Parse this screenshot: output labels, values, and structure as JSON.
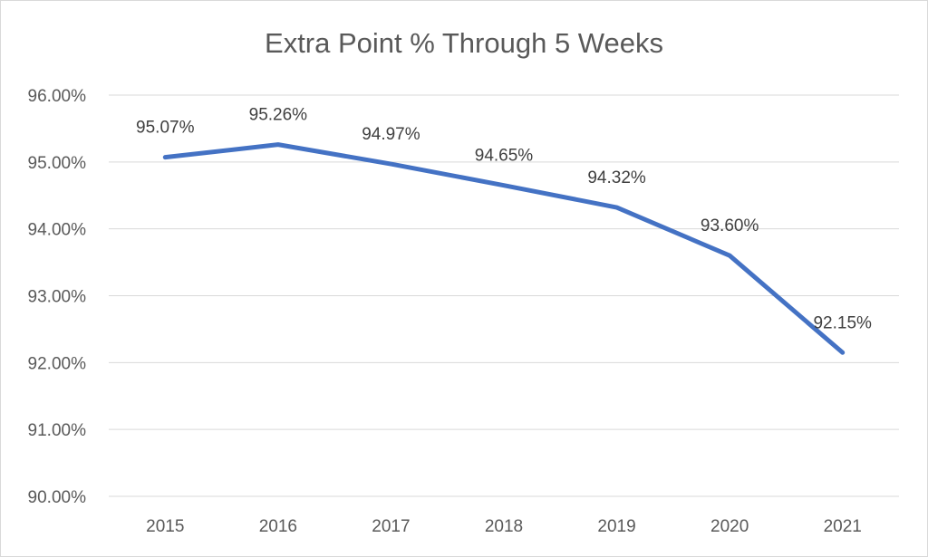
{
  "chart_data": {
    "type": "line",
    "title": "Extra Point % Through 5 Weeks",
    "xlabel": "",
    "ylabel": "",
    "categories": [
      "2015",
      "2016",
      "2017",
      "2018",
      "2019",
      "2020",
      "2021"
    ],
    "series": [
      {
        "values": [
          95.07,
          95.26,
          94.97,
          94.65,
          94.32,
          93.6,
          92.15
        ],
        "data_labels": [
          "95.07%",
          "95.26%",
          "94.97%",
          "94.65%",
          "94.32%",
          "93.60%",
          "92.15%"
        ],
        "color": "#4472c4"
      }
    ],
    "ylim": [
      90,
      96
    ],
    "yticks": [
      90,
      91,
      92,
      93,
      94,
      95,
      96
    ],
    "ytick_labels": [
      "90.00%",
      "91.00%",
      "92.00%",
      "93.00%",
      "94.00%",
      "95.00%",
      "96.00%"
    ],
    "grid": true,
    "legend": "none"
  }
}
